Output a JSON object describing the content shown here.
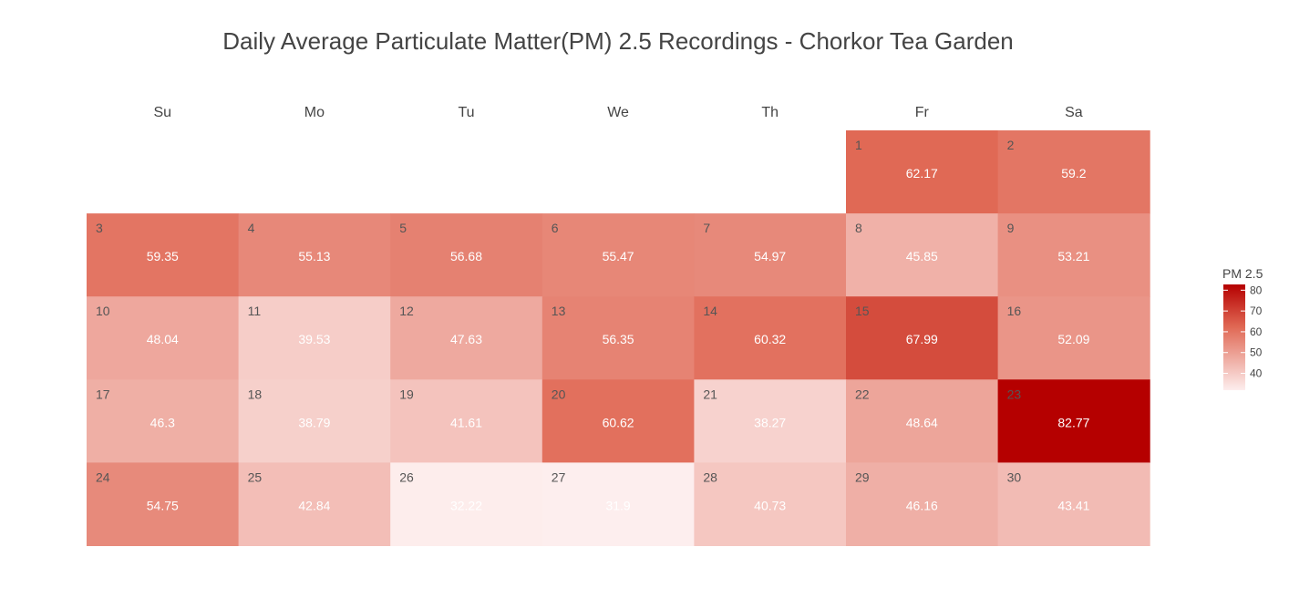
{
  "chart_data": {
    "type": "heatmap",
    "title": "Daily Average Particulate Matter(PM) 2.5 Recordings - Chorkor Tea Garden",
    "weekdays": [
      "Su",
      "Mo",
      "Tu",
      "We",
      "Th",
      "Fr",
      "Sa"
    ],
    "first_weekday_index": 5,
    "days": [
      {
        "day": 1,
        "value": 62.17
      },
      {
        "day": 2,
        "value": 59.2
      },
      {
        "day": 3,
        "value": 59.35
      },
      {
        "day": 4,
        "value": 55.13
      },
      {
        "day": 5,
        "value": 56.68
      },
      {
        "day": 6,
        "value": 55.47
      },
      {
        "day": 7,
        "value": 54.97
      },
      {
        "day": 8,
        "value": 45.85
      },
      {
        "day": 9,
        "value": 53.21
      },
      {
        "day": 10,
        "value": 48.04
      },
      {
        "day": 11,
        "value": 39.53
      },
      {
        "day": 12,
        "value": 47.63
      },
      {
        "day": 13,
        "value": 56.35
      },
      {
        "day": 14,
        "value": 60.32
      },
      {
        "day": 15,
        "value": 67.99
      },
      {
        "day": 16,
        "value": 52.09
      },
      {
        "day": 17,
        "value": 46.3
      },
      {
        "day": 18,
        "value": 38.79
      },
      {
        "day": 19,
        "value": 41.61
      },
      {
        "day": 20,
        "value": 60.62
      },
      {
        "day": 21,
        "value": 38.27
      },
      {
        "day": 22,
        "value": 48.64
      },
      {
        "day": 23,
        "value": 82.77
      },
      {
        "day": 24,
        "value": 54.75
      },
      {
        "day": 25,
        "value": 42.84
      },
      {
        "day": 26,
        "value": 32.22
      },
      {
        "day": 27,
        "value": 31.9
      },
      {
        "day": 28,
        "value": 40.73
      },
      {
        "day": 29,
        "value": 46.16
      },
      {
        "day": 30,
        "value": 43.41
      }
    ],
    "legend": {
      "title": "PM 2.5",
      "ticks": [
        40,
        50,
        60,
        70,
        80
      ],
      "range": [
        31.9,
        82.77
      ],
      "position": "right"
    },
    "colors": {
      "low": "#fdeeee",
      "high": "#b50000",
      "text": "#ffffff",
      "day_number": "#555555",
      "header": "#444444"
    }
  }
}
